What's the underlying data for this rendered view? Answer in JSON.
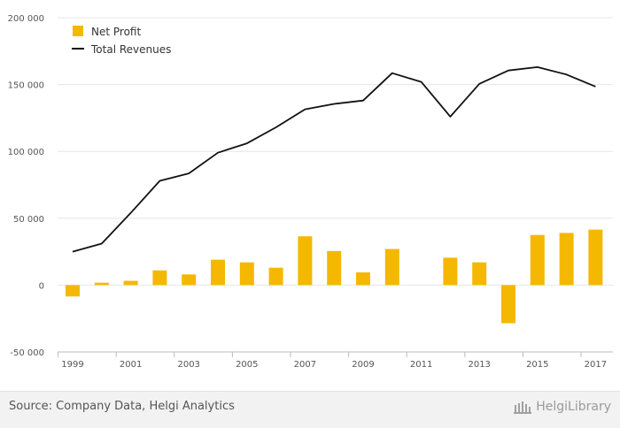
{
  "chart_data": {
    "type": "bar",
    "categories": [
      "1999",
      "2000",
      "2001",
      "2002",
      "2003",
      "2004",
      "2005",
      "2006",
      "2007",
      "2008",
      "2009",
      "2010",
      "2011",
      "2012",
      "2013",
      "2014",
      "2015",
      "2016",
      "2017"
    ],
    "x_tick_labels": [
      "1999",
      "2001",
      "2003",
      "2005",
      "2007",
      "2009",
      "2011",
      "2013",
      "2015",
      "2017"
    ],
    "series": [
      {
        "name": "Net Profit",
        "type": "bar",
        "color": "#f5b800",
        "values": [
          -8500,
          1800,
          3200,
          11000,
          8000,
          19000,
          17000,
          13000,
          36500,
          25500,
          9500,
          27000,
          null,
          20500,
          17000,
          -28500,
          37500,
          39000,
          41500
        ]
      },
      {
        "name": "Total Revenues",
        "type": "line",
        "color": "#111111",
        "values": [
          25000,
          31000,
          54000,
          78000,
          83500,
          99000,
          106000,
          118000,
          131500,
          135500,
          138000,
          158500,
          152000,
          126000,
          150500,
          160500,
          163000,
          157500,
          148500
        ]
      }
    ],
    "ylim": [
      -50000,
      200000
    ],
    "y_ticks": [
      -50000,
      0,
      50000,
      100000,
      150000,
      200000
    ],
    "y_tick_labels": [
      "-50 000",
      "0",
      "50 000",
      "100 000",
      "150 000",
      "200 000"
    ],
    "title": "",
    "xlabel": "",
    "ylabel": "",
    "grid": true,
    "legend_position": "top-left"
  },
  "footer": {
    "source": "Source: Company Data, Helgi Analytics",
    "brand": "HelgiLibrary"
  }
}
